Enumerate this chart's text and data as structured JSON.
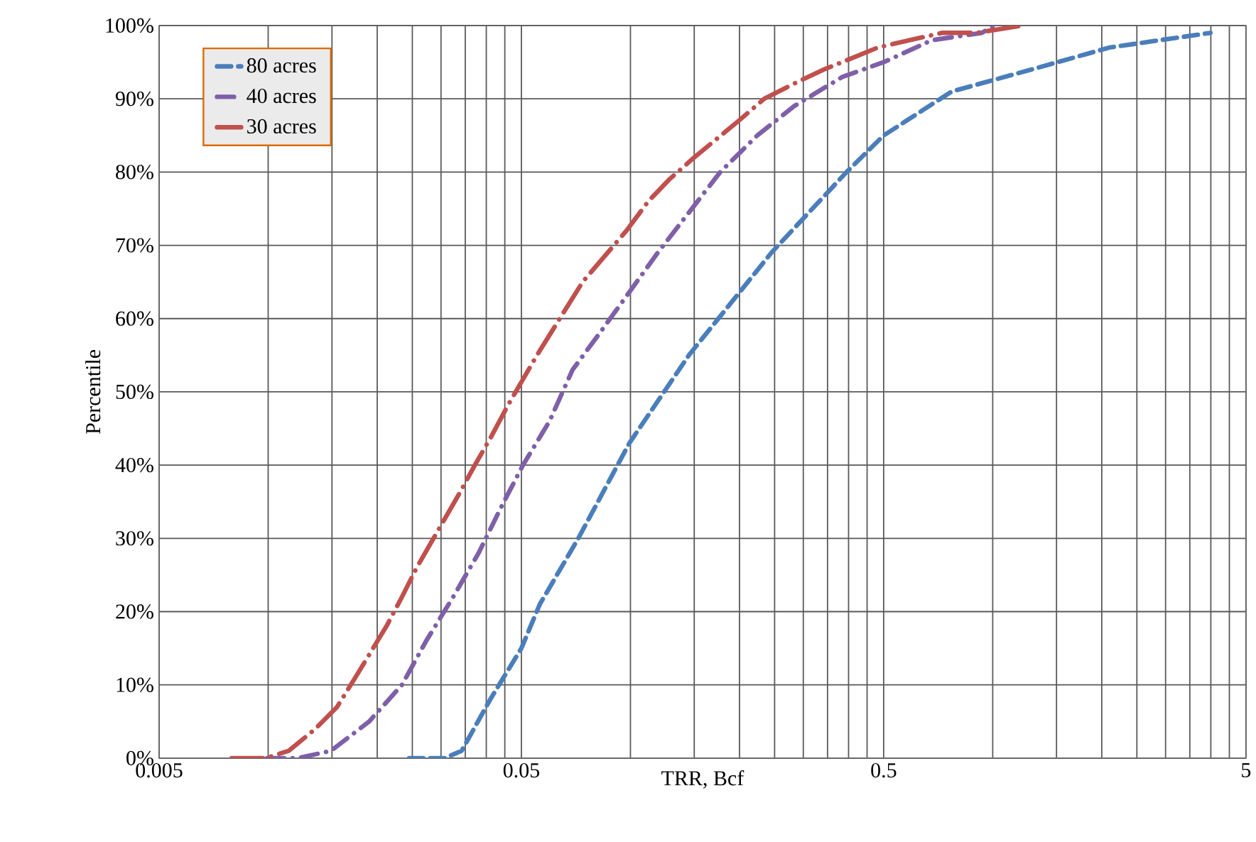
{
  "chart_data": {
    "type": "line",
    "xlabel": "TRR, Bcf",
    "ylabel": "Percentile",
    "log": "x",
    "xlim": [
      0.005,
      5
    ],
    "xticks": [
      0.005,
      0.05,
      0.5,
      5
    ],
    "ylim": [
      0,
      100
    ],
    "yticks": [
      {
        "value": 0,
        "label": "0%"
      },
      {
        "value": 10,
        "label": "10%"
      },
      {
        "value": 20,
        "label": "20%"
      },
      {
        "value": 30,
        "label": "30%"
      },
      {
        "value": 40,
        "label": "40%"
      },
      {
        "value": 50,
        "label": "50%"
      },
      {
        "value": 60,
        "label": "60%"
      },
      {
        "value": 70,
        "label": "70%"
      },
      {
        "value": 80,
        "label": "80%"
      },
      {
        "value": 90,
        "label": "90%"
      },
      {
        "value": 100,
        "label": "100%"
      }
    ],
    "grid": true,
    "legend": "top left",
    "marker": "none",
    "series": [
      {
        "name": "80 acres",
        "color": "#4a7ebb",
        "line_style": "dashed",
        "x": [
          0.0245,
          0.0307,
          0.0342,
          0.041,
          0.05,
          0.0562,
          0.0718,
          0.0993,
          0.145,
          0.245,
          0.395,
          0.5,
          0.771,
          1.28,
          2.1,
          3.99
        ],
        "values": [
          0,
          0,
          1,
          8,
          15,
          21,
          30,
          43,
          55,
          69,
          80,
          85,
          91,
          94,
          97,
          99
        ]
      },
      {
        "name": "40 acres",
        "color": "#7f5fa8",
        "line_style": "dashdot",
        "x": [
          0.00993,
          0.0121,
          0.0149,
          0.019,
          0.0234,
          0.0273,
          0.0324,
          0.0381,
          0.0437,
          0.0505,
          0.0598,
          0.0692,
          0.0822,
          0.119,
          0.177,
          0.224,
          0.283,
          0.385,
          0.5,
          0.679,
          0.933,
          1.01
        ],
        "values": [
          0,
          0,
          1,
          5,
          10,
          16,
          22,
          28,
          34,
          40,
          46,
          53,
          58,
          69,
          80,
          85,
          89,
          93,
          95,
          98,
          99,
          100
        ]
      },
      {
        "name": "30 acres",
        "color": "#c0504d",
        "line_style": "longdashdot",
        "x": [
          0.00793,
          0.00984,
          0.0114,
          0.0135,
          0.0155,
          0.0174,
          0.0212,
          0.0234,
          0.0257,
          0.0286,
          0.0336,
          0.0372,
          0.0414,
          0.0457,
          0.0552,
          0.0738,
          0.0975,
          0.112,
          0.128,
          0.15,
          0.199,
          0.234,
          0.281,
          0.342,
          0.482,
          0.589,
          0.724,
          0.899,
          1.21
        ],
        "values": [
          0,
          0,
          1,
          4,
          7,
          11,
          18,
          22,
          26,
          30,
          36,
          40,
          44,
          48,
          55,
          65,
          72,
          76,
          79,
          82,
          87,
          90,
          92,
          94,
          97,
          98,
          99,
          99,
          100
        ]
      }
    ]
  }
}
